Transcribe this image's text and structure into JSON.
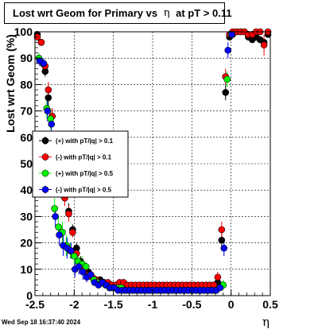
{
  "title": {
    "prefix": "Lost wrt Geom for Primary vs",
    "symbol": "η",
    "suffix": "at pT > 0.11"
  },
  "timestamp": "Wed Sep 18 16:37:40 2024",
  "chart_data": {
    "type": "scatter",
    "title": "Lost wrt Geom for Primary vs η at pT > 0.11",
    "xlabel": "η",
    "ylabel": "Lost wrt Geom (%)",
    "xlim": [
      -2.5,
      0.5
    ],
    "ylim": [
      0,
      100
    ],
    "grid": true,
    "legend_position": "middle-left",
    "x_ticks": [
      {
        "v": -2.5,
        "label": "-2.5"
      },
      {
        "v": -2,
        "label": "-2"
      },
      {
        "v": -1.5,
        "label": "-1.5"
      },
      {
        "v": -1,
        "label": "-1"
      },
      {
        "v": -0.5,
        "label": "-0.5"
      },
      {
        "v": 0,
        "label": "0"
      },
      {
        "v": 0.5,
        "label": "0.5"
      }
    ],
    "y_ticks": [
      {
        "v": 0,
        "label": "0"
      },
      {
        "v": 10,
        "label": "10"
      },
      {
        "v": 20,
        "label": "20"
      },
      {
        "v": 30,
        "label": "30"
      },
      {
        "v": 40,
        "label": "40"
      },
      {
        "v": 50,
        "label": "50"
      },
      {
        "v": 60,
        "label": "60"
      },
      {
        "v": 70,
        "label": "70"
      },
      {
        "v": 80,
        "label": "80"
      },
      {
        "v": 90,
        "label": "90"
      },
      {
        "v": 100,
        "label": "100"
      }
    ],
    "series": [
      {
        "name": "(+) with pT/|q| > 0.1",
        "color": "#000000",
        "x": [
          -2.47,
          -2.42,
          -2.37,
          -2.33,
          -2.28,
          -2.22,
          -2.17,
          -2.12,
          -2.07,
          -2.02,
          -1.97,
          -1.92,
          -1.87,
          -1.82,
          -1.77,
          -1.72,
          -1.67,
          -1.62,
          -1.57,
          -1.52,
          -1.47,
          -1.42,
          -1.37,
          -1.32,
          -1.27,
          -1.22,
          -1.17,
          -1.12,
          -1.07,
          -1.02,
          -0.97,
          -0.92,
          -0.87,
          -0.82,
          -0.77,
          -0.72,
          -0.67,
          -0.62,
          -0.57,
          -0.52,
          -0.47,
          -0.42,
          -0.37,
          -0.32,
          -0.27,
          -0.22,
          -0.17,
          -0.12,
          -0.07,
          -0.02,
          0.02,
          0.07,
          0.12,
          0.17,
          0.22,
          0.27,
          0.32,
          0.37,
          0.42,
          0.47
        ],
        "y": [
          99,
          96,
          85,
          75,
          68,
          45,
          40,
          38,
          32,
          25,
          18,
          13,
          10,
          9,
          7,
          6,
          6,
          5,
          4,
          4,
          4,
          4,
          4,
          3,
          3,
          3,
          3,
          3,
          3,
          3,
          3,
          3,
          3,
          3,
          3,
          3,
          3,
          3,
          3,
          3,
          3,
          3,
          3,
          3,
          3,
          3,
          5,
          21,
          77,
          98,
          99,
          100,
          100,
          100,
          98,
          97,
          98,
          97,
          96,
          99
        ],
        "err": [
          1,
          1,
          2,
          3,
          3,
          3,
          3,
          3,
          3,
          2,
          2,
          2,
          1.5,
          1,
          1,
          1,
          1,
          1,
          1,
          1,
          1,
          1,
          1,
          1,
          1,
          1,
          1,
          1,
          1,
          1,
          1,
          1,
          1,
          1,
          1,
          1,
          1,
          1,
          1,
          1,
          1,
          1,
          1,
          1,
          1,
          1,
          2,
          3,
          3,
          1,
          1,
          0.5,
          0.5,
          0.5,
          1,
          1,
          1,
          1,
          1,
          0.5
        ]
      },
      {
        "name": "(-) with pT/|q| > 0.1",
        "color": "#ff0000",
        "x": [
          -2.47,
          -2.42,
          -2.37,
          -2.33,
          -2.28,
          -2.22,
          -2.17,
          -2.12,
          -2.07,
          -2.02,
          -1.97,
          -1.92,
          -1.87,
          -1.82,
          -1.77,
          -1.72,
          -1.67,
          -1.62,
          -1.57,
          -1.52,
          -1.47,
          -1.42,
          -1.37,
          -1.32,
          -1.27,
          -1.22,
          -1.17,
          -1.12,
          -1.07,
          -1.02,
          -0.97,
          -0.92,
          -0.87,
          -0.82,
          -0.77,
          -0.72,
          -0.67,
          -0.62,
          -0.57,
          -0.52,
          -0.47,
          -0.42,
          -0.37,
          -0.32,
          -0.27,
          -0.22,
          -0.17,
          -0.12,
          -0.07,
          -0.02,
          0.02,
          0.07,
          0.12,
          0.17,
          0.22,
          0.27,
          0.32,
          0.37,
          0.42,
          0.47
        ],
        "y": [
          98,
          96,
          87,
          78,
          68,
          47,
          42,
          37,
          31,
          24,
          16,
          12,
          10,
          8,
          7,
          6,
          5,
          5,
          5,
          4,
          4,
          5,
          5,
          4,
          4,
          4,
          4,
          4,
          4,
          4,
          4,
          4,
          4,
          4,
          4,
          4,
          4,
          4,
          4,
          4,
          4,
          4,
          4,
          4,
          4,
          4,
          7,
          25,
          83,
          99,
          100,
          100,
          100,
          100,
          99,
          99,
          100,
          100,
          95,
          100
        ],
        "err": [
          1,
          1,
          2,
          3,
          3,
          3,
          3,
          3,
          3,
          2,
          2,
          2,
          1.5,
          1,
          1,
          1,
          1,
          1,
          1,
          1,
          1,
          1,
          1,
          1,
          1,
          1,
          1,
          1,
          1,
          1,
          1,
          1,
          1,
          1,
          1,
          1,
          1,
          1,
          1,
          1,
          1,
          1,
          1,
          1,
          1,
          1,
          2,
          3,
          3,
          1,
          1,
          0.5,
          0.5,
          0.5,
          1,
          1,
          1,
          1,
          4,
          0.5
        ]
      },
      {
        "name": "(+) with pT/|q| > 0.5",
        "color": "#00ff00",
        "x": [
          -2.45,
          -2.4,
          -2.35,
          -2.3,
          -2.25,
          -2.2,
          -2.15,
          -2.1,
          -2.05,
          -2.0,
          -1.95,
          -1.9,
          -1.85,
          -1.8,
          -1.75,
          -1.7,
          -1.65,
          -1.6,
          -1.55,
          -1.5,
          -1.45,
          -1.4,
          -1.35,
          -1.3,
          -1.25,
          -1.2,
          -1.15,
          -1.1,
          -1.05,
          -1.0,
          -0.95,
          -0.9,
          -0.85,
          -0.8,
          -0.75,
          -0.7,
          -0.65,
          -0.6,
          -0.55,
          -0.5,
          -0.45,
          -0.4,
          -0.35,
          -0.3,
          -0.25,
          -0.2,
          -0.15,
          -0.1,
          -0.05,
          0.0
        ],
        "y": [
          90,
          88,
          71,
          67,
          33,
          26,
          24,
          19,
          17,
          15,
          13,
          12,
          11,
          8,
          6,
          5,
          5,
          4,
          3,
          3,
          3,
          3,
          2,
          2,
          2,
          2,
          2,
          2,
          2,
          2,
          2,
          2,
          2,
          2,
          2,
          2,
          2,
          2,
          2,
          2,
          2,
          2,
          2,
          2,
          2,
          2,
          3,
          4,
          82,
          99
        ],
        "err": [
          2,
          2,
          4,
          4,
          4,
          4,
          4,
          4,
          3,
          3,
          3,
          3,
          2,
          2,
          1,
          1,
          1,
          1,
          1,
          1,
          1,
          1,
          1,
          1,
          1,
          1,
          1,
          1,
          1,
          1,
          1,
          1,
          1,
          1,
          1,
          1,
          1,
          1,
          1,
          1,
          1,
          1,
          1,
          1,
          1,
          1,
          1,
          2,
          3,
          1
        ]
      },
      {
        "name": "(-) with pT/|q| > 0.5",
        "color": "#0000ff",
        "x": [
          -2.44,
          -2.39,
          -2.34,
          -2.29,
          -2.24,
          -2.19,
          -2.14,
          -2.09,
          -2.04,
          -1.99,
          -1.94,
          -1.89,
          -1.84,
          -1.79,
          -1.74,
          -1.69,
          -1.64,
          -1.59,
          -1.54,
          -1.49,
          -1.44,
          -1.39,
          -1.34,
          -1.29,
          -1.24,
          -1.19,
          -1.14,
          -1.09,
          -1.04,
          -0.99,
          -0.94,
          -0.89,
          -0.84,
          -0.79,
          -0.74,
          -0.69,
          -0.64,
          -0.59,
          -0.54,
          -0.49,
          -0.44,
          -0.39,
          -0.34,
          -0.29,
          -0.24,
          -0.19,
          -0.14,
          -0.09,
          -0.04,
          0.01
        ],
        "y": [
          89,
          88,
          70,
          65,
          30,
          23,
          19,
          18,
          17,
          10,
          11,
          9,
          7,
          8,
          5,
          4,
          5,
          4,
          3,
          3,
          2,
          2,
          2,
          2,
          2,
          2,
          2,
          2,
          2,
          2,
          2,
          2,
          2,
          2,
          2,
          2,
          2,
          2,
          2,
          2,
          2,
          2,
          2,
          2,
          2,
          2,
          3,
          18,
          93,
          99
        ],
        "err": [
          2,
          2,
          4,
          4,
          4,
          4,
          4,
          4,
          3,
          3,
          3,
          3,
          2,
          2,
          1,
          1,
          1,
          1,
          1,
          1,
          1,
          1,
          1,
          1,
          1,
          1,
          1,
          1,
          1,
          1,
          1,
          1,
          1,
          1,
          1,
          1,
          1,
          1,
          1,
          1,
          1,
          1,
          1,
          1,
          1,
          1,
          1,
          3,
          3,
          1
        ]
      }
    ]
  }
}
